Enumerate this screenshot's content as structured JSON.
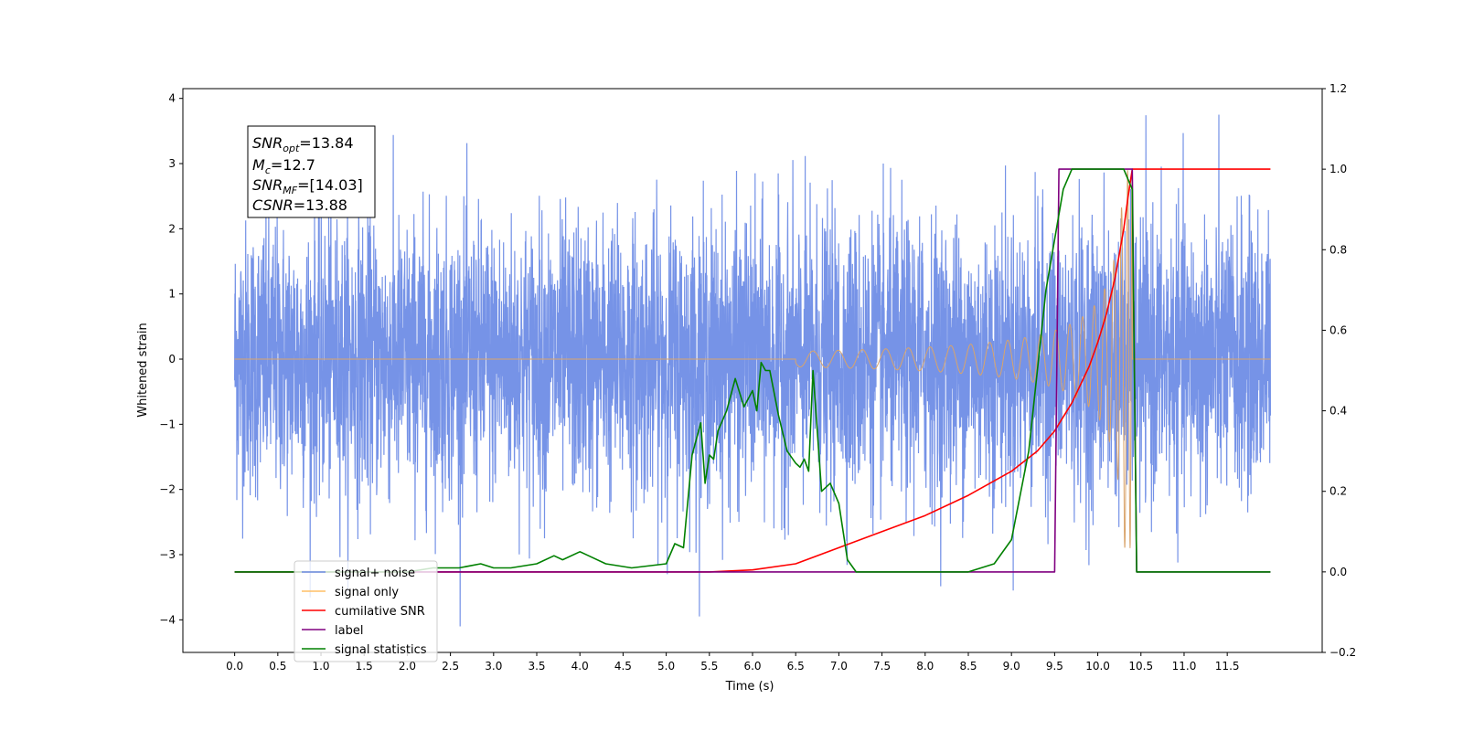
{
  "chart_data": {
    "type": "line",
    "xlabel": "Time (s)",
    "ylabel": "Whitened strain",
    "xlim": [
      -0.6,
      12.6
    ],
    "ylim": [
      -4.5,
      4.15
    ],
    "y2lim": [
      -0.2,
      1.2
    ],
    "x_ticks": [
      "0.0",
      "0.5",
      "1.0",
      "1.5",
      "2.0",
      "2.5",
      "3.0",
      "3.5",
      "4.0",
      "4.5",
      "5.0",
      "5.5",
      "6.0",
      "6.5",
      "7.0",
      "7.5",
      "8.0",
      "8.5",
      "9.0",
      "9.5",
      "10.0",
      "10.5",
      "11.0",
      "11.5"
    ],
    "y_ticks": [
      4,
      3,
      2,
      1,
      0,
      -1,
      -2,
      -3,
      -4
    ],
    "y_tick_labels": [
      "4",
      "3",
      "2",
      "1",
      "0",
      "−1",
      "−2",
      "−3",
      "−4"
    ],
    "y2_ticks": [
      1.2,
      1.0,
      0.8,
      0.6,
      0.4,
      0.2,
      0.0,
      -0.2
    ],
    "y2_tick_labels": [
      "1.2",
      "1.0",
      "0.8",
      "0.6",
      "0.4",
      "0.2",
      "0.0",
      "−0.2"
    ],
    "legend": {
      "location": "lower-left",
      "entries": [
        {
          "name": "signal+ noise",
          "color": "#6f8de6"
        },
        {
          "name": "signal only",
          "color": "#ffbf66"
        },
        {
          "name": "cumilative SNR",
          "color": "#ff0000"
        },
        {
          "name": "label",
          "color": "#800080"
        },
        {
          "name": "signal statistics",
          "color": "#008000"
        }
      ]
    },
    "annotation": {
      "snr_opt": "=13.84",
      "mc": "=12.7",
      "snr_mf": "=[14.03]",
      "csnr": "=13.88"
    },
    "series": [
      {
        "name": "signal+ noise",
        "axis": "left",
        "color": "#6f8de6",
        "description_values": "whitened noise with std ~1, peaks ~±3.8, spanning t=0 to 12"
      },
      {
        "name": "signal only",
        "axis": "left",
        "color": "#d9a46b",
        "chirp_start": 6.5,
        "chirp_end": 10.4,
        "peak_amplitude": 2.9
      },
      {
        "name": "cumilative SNR",
        "axis": "right",
        "color": "#ff0000",
        "x": [
          0,
          5.5,
          6.0,
          6.5,
          7.0,
          7.5,
          8.0,
          8.5,
          9.0,
          9.3,
          9.5,
          9.7,
          9.9,
          10.0,
          10.1,
          10.2,
          10.3,
          10.35,
          10.4,
          10.5,
          11.0,
          11.5,
          12.0
        ],
        "values": [
          0.0,
          0.0,
          0.005,
          0.02,
          0.06,
          0.1,
          0.14,
          0.19,
          0.25,
          0.3,
          0.35,
          0.42,
          0.51,
          0.57,
          0.64,
          0.73,
          0.85,
          0.93,
          1.0,
          1.0,
          1.0,
          1.0,
          1.0
        ]
      },
      {
        "name": "label",
        "axis": "right",
        "color": "#800080",
        "x": [
          0,
          9.5,
          9.55,
          10.4,
          10.45,
          12.0
        ],
        "values": [
          0,
          0,
          1,
          1,
          0,
          0
        ]
      },
      {
        "name": "signal statistics",
        "axis": "right",
        "color": "#008000",
        "x": [
          0.0,
          2.0,
          2.3,
          2.6,
          2.85,
          3.0,
          3.2,
          3.5,
          3.7,
          3.8,
          4.0,
          4.1,
          4.3,
          4.6,
          5.0,
          5.1,
          5.2,
          5.3,
          5.4,
          5.45,
          5.5,
          5.55,
          5.6,
          5.7,
          5.8,
          5.9,
          6.0,
          6.05,
          6.1,
          6.15,
          6.2,
          6.3,
          6.4,
          6.5,
          6.55,
          6.6,
          6.65,
          6.7,
          6.8,
          6.9,
          7.0,
          7.1,
          7.2,
          7.5,
          8.0,
          8.5,
          8.8,
          9.0,
          9.2,
          9.4,
          9.6,
          9.7,
          10.0,
          10.3,
          10.4,
          10.45,
          12.0
        ],
        "values": [
          0.0,
          0.0,
          0.01,
          0.01,
          0.02,
          0.01,
          0.01,
          0.02,
          0.04,
          0.03,
          0.05,
          0.04,
          0.02,
          0.01,
          0.02,
          0.07,
          0.06,
          0.29,
          0.37,
          0.22,
          0.29,
          0.28,
          0.35,
          0.4,
          0.48,
          0.41,
          0.45,
          0.4,
          0.52,
          0.5,
          0.5,
          0.39,
          0.3,
          0.27,
          0.26,
          0.28,
          0.25,
          0.5,
          0.2,
          0.22,
          0.17,
          0.03,
          0.0,
          0.0,
          0.0,
          0.0,
          0.02,
          0.08,
          0.3,
          0.7,
          0.95,
          1.0,
          1.0,
          1.0,
          0.95,
          0.0,
          0.0
        ]
      }
    ]
  }
}
